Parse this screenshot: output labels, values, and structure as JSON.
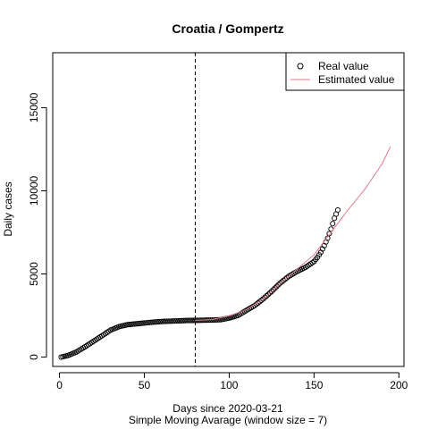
{
  "chart_data": {
    "type": "scatter",
    "title": "Croatia / Gompertz",
    "xlabel": "Days since 2020-03-21",
    "sublabel": "Simple Moving Avarage (window size = 7)",
    "ylabel": "Daily cases",
    "xlim": [
      -4,
      203
    ],
    "ylim": [
      -560,
      18300
    ],
    "xticks": [
      "0",
      "50",
      "100",
      "150",
      "200"
    ],
    "yticks": [
      "0",
      "5000",
      "10000",
      "15000"
    ],
    "vline_x": 80,
    "legend": {
      "position": "top-right",
      "entries": [
        "Real value",
        "Estimated value"
      ]
    },
    "colors": {
      "real": "#000000",
      "estimated": "#e07a8a"
    },
    "series": [
      {
        "name": "Real value",
        "kind": "points",
        "x_start": 1,
        "x_end": 164,
        "anchors": [
          [
            1,
            0
          ],
          [
            5,
            100
          ],
          [
            10,
            310
          ],
          [
            15,
            620
          ],
          [
            20,
            950
          ],
          [
            25,
            1280
          ],
          [
            30,
            1620
          ],
          [
            35,
            1830
          ],
          [
            40,
            1950
          ],
          [
            45,
            2000
          ],
          [
            50,
            2050
          ],
          [
            55,
            2100
          ],
          [
            60,
            2140
          ],
          [
            65,
            2160
          ],
          [
            70,
            2180
          ],
          [
            75,
            2200
          ],
          [
            80,
            2210
          ],
          [
            85,
            2220
          ],
          [
            90,
            2230
          ],
          [
            95,
            2250
          ],
          [
            100,
            2350
          ],
          [
            105,
            2500
          ],
          [
            110,
            2800
          ],
          [
            115,
            3100
          ],
          [
            120,
            3500
          ],
          [
            125,
            3950
          ],
          [
            130,
            4450
          ],
          [
            135,
            4850
          ],
          [
            140,
            5150
          ],
          [
            145,
            5400
          ],
          [
            150,
            5750
          ],
          [
            152,
            6000
          ],
          [
            154,
            6300
          ],
          [
            156,
            6700
          ],
          [
            158,
            7150
          ],
          [
            160,
            7700
          ],
          [
            162,
            8350
          ],
          [
            164,
            8850
          ]
        ]
      },
      {
        "name": "Estimated value",
        "kind": "line",
        "x_start": 80,
        "x_end": 195,
        "anchors": [
          [
            80,
            2210
          ],
          [
            90,
            2260
          ],
          [
            100,
            2480
          ],
          [
            110,
            2850
          ],
          [
            120,
            3500
          ],
          [
            130,
            4400
          ],
          [
            140,
            5300
          ],
          [
            150,
            6150
          ],
          [
            160,
            7500
          ],
          [
            170,
            8850
          ],
          [
            180,
            10100
          ],
          [
            190,
            11600
          ],
          [
            195,
            12650
          ]
        ]
      }
    ]
  }
}
